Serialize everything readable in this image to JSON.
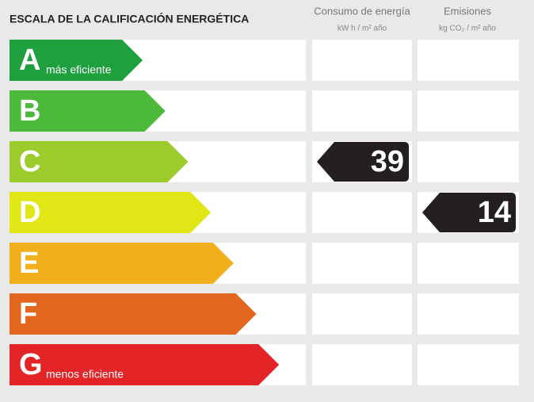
{
  "title": "ESCALA DE LA CALIFICACIÓN ENERGÉTICA",
  "columns": [
    {
      "title": "Consumo de energía",
      "unit": "kW h / m² año"
    },
    {
      "title": "Emisiones",
      "unit": "kg CO₂ / m² año"
    }
  ],
  "ratings": [
    {
      "letter": "A",
      "note": "más eficiente",
      "color": "#1fa03f"
    },
    {
      "letter": "B",
      "color": "#4cb93a"
    },
    {
      "letter": "C",
      "color": "#9ccb2b"
    },
    {
      "letter": "D",
      "color": "#e1e616"
    },
    {
      "letter": "E",
      "color": "#efb01b"
    },
    {
      "letter": "F",
      "color": "#e3661f"
    },
    {
      "letter": "G",
      "note": "menos eficiente",
      "color": "#e42527"
    }
  ],
  "consumption": {
    "rating": "C",
    "value": 39
  },
  "emissions": {
    "rating": "D",
    "value": 14
  }
}
